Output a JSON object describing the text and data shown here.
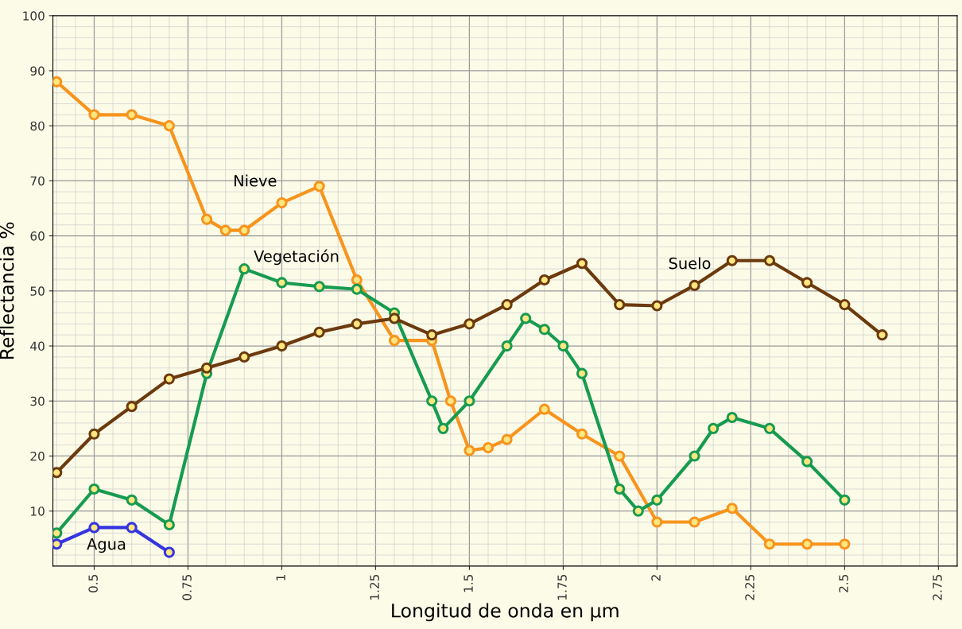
{
  "chart_data": {
    "type": "line",
    "xlabel": "Longitud de onda en µm",
    "ylabel": "Reflectancia %",
    "xlim": [
      0.39,
      2.8
    ],
    "ylim": [
      0,
      100
    ],
    "xticks": [
      0.5,
      0.75,
      1,
      1.25,
      1.5,
      1.75,
      2,
      2.25,
      2.5,
      2.75
    ],
    "yticks": [
      10,
      20,
      30,
      40,
      50,
      60,
      70,
      80,
      90,
      100
    ],
    "grid": true,
    "legend": false,
    "marker": "circle",
    "line_style": "solid",
    "series": [
      {
        "name": "Nieve",
        "color": "#f7941d",
        "x": [
          0.4,
          0.5,
          0.6,
          0.7,
          0.8,
          0.85,
          0.9,
          1.0,
          1.1,
          1.2,
          1.3,
          1.4,
          1.45,
          1.5,
          1.55,
          1.6,
          1.7,
          1.8,
          1.9,
          2.0,
          2.1,
          2.2,
          2.3,
          2.4,
          2.5
        ],
        "values": [
          88,
          82,
          82,
          80,
          63,
          61,
          61,
          66,
          69,
          52,
          41,
          41,
          30,
          21,
          21.5,
          23,
          28.5,
          24,
          20,
          8,
          8,
          10.5,
          4,
          4,
          4
        ]
      },
      {
        "name": "Vegetación",
        "color": "#179b50",
        "x": [
          0.4,
          0.5,
          0.6,
          0.7,
          0.8,
          0.9,
          1.0,
          1.1,
          1.2,
          1.3,
          1.4,
          1.43,
          1.5,
          1.6,
          1.65,
          1.7,
          1.75,
          1.8,
          1.9,
          1.95,
          2.0,
          2.1,
          2.15,
          2.2,
          2.3,
          2.4,
          2.5
        ],
        "values": [
          6,
          14,
          12,
          7.5,
          35,
          54,
          51.5,
          50.8,
          50.3,
          46,
          30,
          25,
          30,
          40,
          45,
          43,
          40,
          35,
          14,
          10,
          12,
          20,
          25,
          27,
          25,
          19,
          12
        ]
      },
      {
        "name": "Suelo",
        "color": "#6b3a0e",
        "x": [
          0.4,
          0.5,
          0.6,
          0.7,
          0.8,
          0.9,
          1.0,
          1.1,
          1.2,
          1.3,
          1.4,
          1.5,
          1.6,
          1.7,
          1.8,
          1.9,
          2.0,
          2.1,
          2.2,
          2.3,
          2.4,
          2.5,
          2.6
        ],
        "values": [
          17,
          24,
          29,
          34,
          36,
          38,
          40,
          42.5,
          44,
          45,
          42,
          44,
          47.5,
          52,
          55,
          47.5,
          47.3,
          51,
          55.5,
          55.5,
          51.5,
          47.5,
          42
        ]
      },
      {
        "name": "Agua",
        "color": "#3535e0",
        "x": [
          0.4,
          0.5,
          0.6,
          0.7
        ],
        "values": [
          4,
          7,
          7,
          2.5
        ]
      }
    ]
  }
}
